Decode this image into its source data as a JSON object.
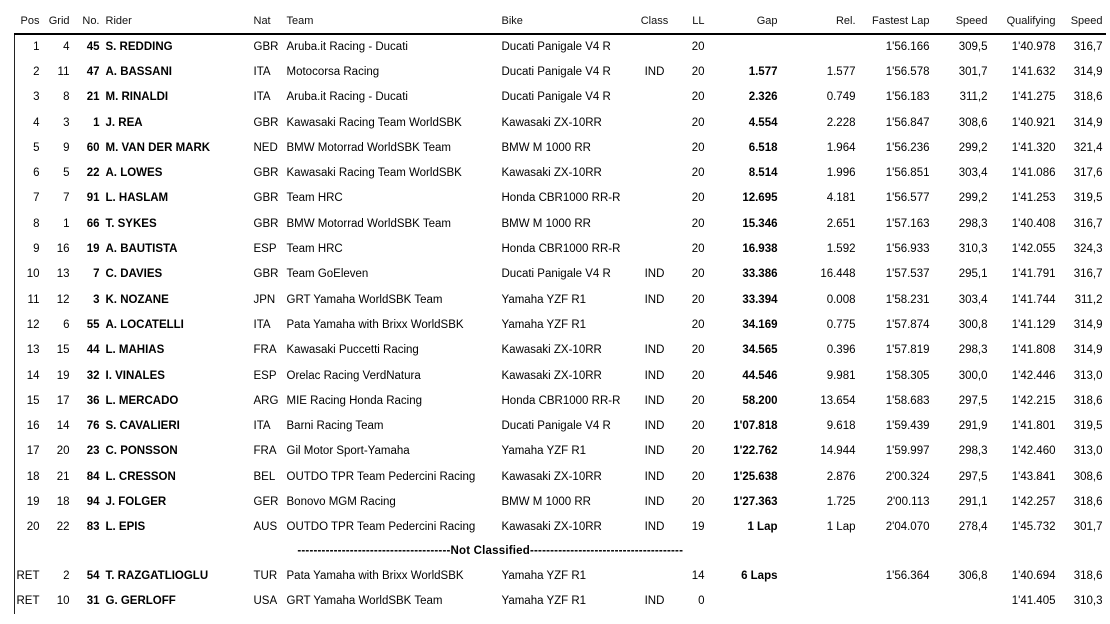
{
  "table": {
    "header": [
      "Pos",
      "Grid",
      "No.",
      "Rider",
      "Nat",
      "Team",
      "Bike",
      "Class",
      "LL",
      "Gap",
      "Rel.",
      "Fastest Lap",
      "Speed",
      "Qualifying",
      "Speed"
    ],
    "rows": [
      [
        "1",
        "4",
        "45",
        "S. REDDING",
        "GBR",
        "Aruba.it Racing - Ducati",
        "Ducati Panigale V4 R",
        "",
        "20",
        "",
        "",
        "1'56.166",
        "309,5",
        "1'40.978",
        "316,7"
      ],
      [
        "2",
        "11",
        "47",
        "A. BASSANI",
        "ITA",
        "Motocorsa Racing",
        "Ducati Panigale V4 R",
        "IND",
        "20",
        "1.577",
        "1.577",
        "1'56.578",
        "301,7",
        "1'41.632",
        "314,9"
      ],
      [
        "3",
        "8",
        "21",
        "M. RINALDI",
        "ITA",
        "Aruba.it Racing - Ducati",
        "Ducati Panigale V4 R",
        "",
        "20",
        "2.326",
        "0.749",
        "1'56.183",
        "311,2",
        "1'41.275",
        "318,6"
      ],
      [
        "4",
        "3",
        "1",
        "J. REA",
        "GBR",
        "Kawasaki Racing Team WorldSBK",
        "Kawasaki ZX-10RR",
        "",
        "20",
        "4.554",
        "2.228",
        "1'56.847",
        "308,6",
        "1'40.921",
        "314,9"
      ],
      [
        "5",
        "9",
        "60",
        "M. VAN DER MARK",
        "NED",
        "BMW Motorrad WorldSBK Team",
        "BMW M 1000 RR",
        "",
        "20",
        "6.518",
        "1.964",
        "1'56.236",
        "299,2",
        "1'41.320",
        "321,4"
      ],
      [
        "6",
        "5",
        "22",
        "A. LOWES",
        "GBR",
        "Kawasaki Racing Team WorldSBK",
        "Kawasaki ZX-10RR",
        "",
        "20",
        "8.514",
        "1.996",
        "1'56.851",
        "303,4",
        "1'41.086",
        "317,6"
      ],
      [
        "7",
        "7",
        "91",
        "L. HASLAM",
        "GBR",
        "Team HRC",
        "Honda CBR1000 RR-R",
        "",
        "20",
        "12.695",
        "4.181",
        "1'56.577",
        "299,2",
        "1'41.253",
        "319,5"
      ],
      [
        "8",
        "1",
        "66",
        "T. SYKES",
        "GBR",
        "BMW Motorrad WorldSBK Team",
        "BMW M 1000 RR",
        "",
        "20",
        "15.346",
        "2.651",
        "1'57.163",
        "298,3",
        "1'40.408",
        "316,7"
      ],
      [
        "9",
        "16",
        "19",
        "A. BAUTISTA",
        "ESP",
        "Team HRC",
        "Honda CBR1000 RR-R",
        "",
        "20",
        "16.938",
        "1.592",
        "1'56.933",
        "310,3",
        "1'42.055",
        "324,3"
      ],
      [
        "10",
        "13",
        "7",
        "C. DAVIES",
        "GBR",
        "Team GoEleven",
        "Ducati Panigale V4 R",
        "IND",
        "20",
        "33.386",
        "16.448",
        "1'57.537",
        "295,1",
        "1'41.791",
        "316,7"
      ],
      [
        "11",
        "12",
        "3",
        "K. NOZANE",
        "JPN",
        "GRT Yamaha WorldSBK Team",
        "Yamaha YZF R1",
        "IND",
        "20",
        "33.394",
        "0.008",
        "1'58.231",
        "303,4",
        "1'41.744",
        "311,2"
      ],
      [
        "12",
        "6",
        "55",
        "A. LOCATELLI",
        "ITA",
        "Pata Yamaha with Brixx WorldSBK",
        "Yamaha YZF R1",
        "",
        "20",
        "34.169",
        "0.775",
        "1'57.874",
        "300,8",
        "1'41.129",
        "314,9"
      ],
      [
        "13",
        "15",
        "44",
        "L. MAHIAS",
        "FRA",
        "Kawasaki Puccetti Racing",
        "Kawasaki ZX-10RR",
        "IND",
        "20",
        "34.565",
        "0.396",
        "1'57.819",
        "298,3",
        "1'41.808",
        "314,9"
      ],
      [
        "14",
        "19",
        "32",
        "I. VINALES",
        "ESP",
        "Orelac Racing VerdNatura",
        "Kawasaki ZX-10RR",
        "IND",
        "20",
        "44.546",
        "9.981",
        "1'58.305",
        "300,0",
        "1'42.446",
        "313,0"
      ],
      [
        "15",
        "17",
        "36",
        "L. MERCADO",
        "ARG",
        "MIE Racing Honda Racing",
        "Honda CBR1000 RR-R",
        "IND",
        "20",
        "58.200",
        "13.654",
        "1'58.683",
        "297,5",
        "1'42.215",
        "318,6"
      ],
      [
        "16",
        "14",
        "76",
        "S. CAVALIERI",
        "ITA",
        "Barni Racing Team",
        "Ducati Panigale V4 R",
        "IND",
        "20",
        "1'07.818",
        "9.618",
        "1'59.439",
        "291,9",
        "1'41.801",
        "319,5"
      ],
      [
        "17",
        "20",
        "23",
        "C. PONSSON",
        "FRA",
        "Gil Motor Sport-Yamaha",
        "Yamaha YZF R1",
        "IND",
        "20",
        "1'22.762",
        "14.944",
        "1'59.997",
        "298,3",
        "1'42.460",
        "313,0"
      ],
      [
        "18",
        "21",
        "84",
        "L. CRESSON",
        "BEL",
        "OUTDO TPR Team Pedercini Racing",
        "Kawasaki ZX-10RR",
        "IND",
        "20",
        "1'25.638",
        "2.876",
        "2'00.324",
        "297,5",
        "1'43.841",
        "308,6"
      ],
      [
        "19",
        "18",
        "94",
        "J. FOLGER",
        "GER",
        "Bonovo MGM Racing",
        "BMW M 1000 RR",
        "IND",
        "20",
        "1'27.363",
        "1.725",
        "2'00.113",
        "291,1",
        "1'42.257",
        "318,6"
      ],
      [
        "20",
        "22",
        "83",
        "L. EPIS",
        "AUS",
        "OUTDO TPR Team Pedercini Racing",
        "Kawasaki ZX-10RR",
        "IND",
        "19",
        "1 Lap",
        "1 Lap",
        "2'04.070",
        "278,4",
        "1'45.732",
        "301,7"
      ]
    ],
    "separator": {
      "dashes": "--------------------------------------",
      "label": "Not Classified"
    },
    "not_classified": [
      [
        "RET",
        "2",
        "54",
        "T. RAZGATLIOGLU",
        "TUR",
        "Pata Yamaha with Brixx WorldSBK",
        "Yamaha YZF R1",
        "",
        "14",
        "6 Laps",
        "",
        "1'56.364",
        "306,8",
        "1'40.694",
        "318,6"
      ],
      [
        "RET",
        "10",
        "31",
        "G. GERLOFF",
        "USA",
        "GRT Yamaha WorldSBK Team",
        "Yamaha YZF R1",
        "IND",
        "0",
        "",
        "",
        "",
        "",
        "1'41.405",
        "310,3"
      ]
    ]
  }
}
